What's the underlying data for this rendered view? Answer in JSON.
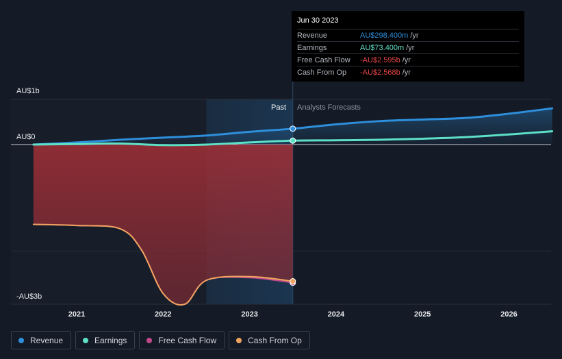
{
  "chart_data": {
    "type": "line",
    "y_axis_labels": [
      "AU$1b",
      "AU$0",
      "-AU$3b"
    ],
    "x_tick_labels": [
      "2021",
      "2022",
      "2023",
      "2024",
      "2025",
      "2026"
    ],
    "section_labels": {
      "past": "Past",
      "forecast": "Analysts Forecasts"
    },
    "series": [
      {
        "name": "Revenue",
        "color": "#2e8fdc",
        "points": [
          [
            2020.5,
            0.0
          ],
          [
            2021.0,
            0.04
          ],
          [
            2021.5,
            0.09
          ],
          [
            2022.0,
            0.13
          ],
          [
            2022.5,
            0.17
          ],
          [
            2023.0,
            0.24
          ],
          [
            2023.5,
            0.2984
          ],
          [
            2024.0,
            0.38
          ],
          [
            2024.5,
            0.44
          ],
          [
            2025.0,
            0.47
          ],
          [
            2025.5,
            0.5
          ],
          [
            2026.0,
            0.58
          ],
          [
            2026.5,
            0.68
          ]
        ]
      },
      {
        "name": "Earnings",
        "color": "#5ee1c7",
        "points": [
          [
            2020.5,
            0.0
          ],
          [
            2021.0,
            0.01
          ],
          [
            2021.5,
            0.02
          ],
          [
            2022.0,
            -0.01
          ],
          [
            2022.5,
            0.0
          ],
          [
            2023.0,
            0.04
          ],
          [
            2023.5,
            0.0734
          ],
          [
            2024.0,
            0.08
          ],
          [
            2024.5,
            0.09
          ],
          [
            2025.0,
            0.11
          ],
          [
            2025.5,
            0.14
          ],
          [
            2026.0,
            0.19
          ],
          [
            2026.5,
            0.25
          ]
        ]
      },
      {
        "name": "Free Cash Flow",
        "color": "#c4498c",
        "points": [
          [
            2020.5,
            -1.5
          ],
          [
            2021.0,
            -1.52
          ],
          [
            2021.5,
            -1.58
          ],
          [
            2021.75,
            -1.98
          ],
          [
            2022.0,
            -2.8
          ],
          [
            2022.25,
            -3.0
          ],
          [
            2022.5,
            -2.55
          ],
          [
            2023.0,
            -2.5
          ],
          [
            2023.5,
            -2.595
          ]
        ]
      },
      {
        "name": "Cash From Op",
        "color": "#f0a35e",
        "points": [
          [
            2020.5,
            -1.5
          ],
          [
            2021.0,
            -1.52
          ],
          [
            2021.5,
            -1.58
          ],
          [
            2021.75,
            -1.98
          ],
          [
            2022.0,
            -2.8
          ],
          [
            2022.25,
            -3.0
          ],
          [
            2022.5,
            -2.55
          ],
          [
            2023.0,
            -2.48
          ],
          [
            2023.5,
            -2.568
          ]
        ]
      }
    ],
    "highlight_x": 2023.5
  },
  "tooltip": {
    "date": "Jun 30 2023",
    "rows": [
      {
        "label": "Revenue",
        "value": "AU$298.400m",
        "unit": "/yr",
        "color": "#2e8fdc"
      },
      {
        "label": "Earnings",
        "value": "AU$73.400m",
        "unit": "/yr",
        "color": "#5ee1c7"
      },
      {
        "label": "Free Cash Flow",
        "value": "-AU$2.595b",
        "unit": "/yr",
        "color": "#e8484a"
      },
      {
        "label": "Cash From Op",
        "value": "-AU$2.568b",
        "unit": "/yr",
        "color": "#e8484a"
      }
    ]
  },
  "legend": [
    {
      "label": "Revenue",
      "color": "#2e8fdc"
    },
    {
      "label": "Earnings",
      "color": "#5ee1c7"
    },
    {
      "label": "Free Cash Flow",
      "color": "#c4498c"
    },
    {
      "label": "Cash From Op",
      "color": "#f0a35e"
    }
  ]
}
